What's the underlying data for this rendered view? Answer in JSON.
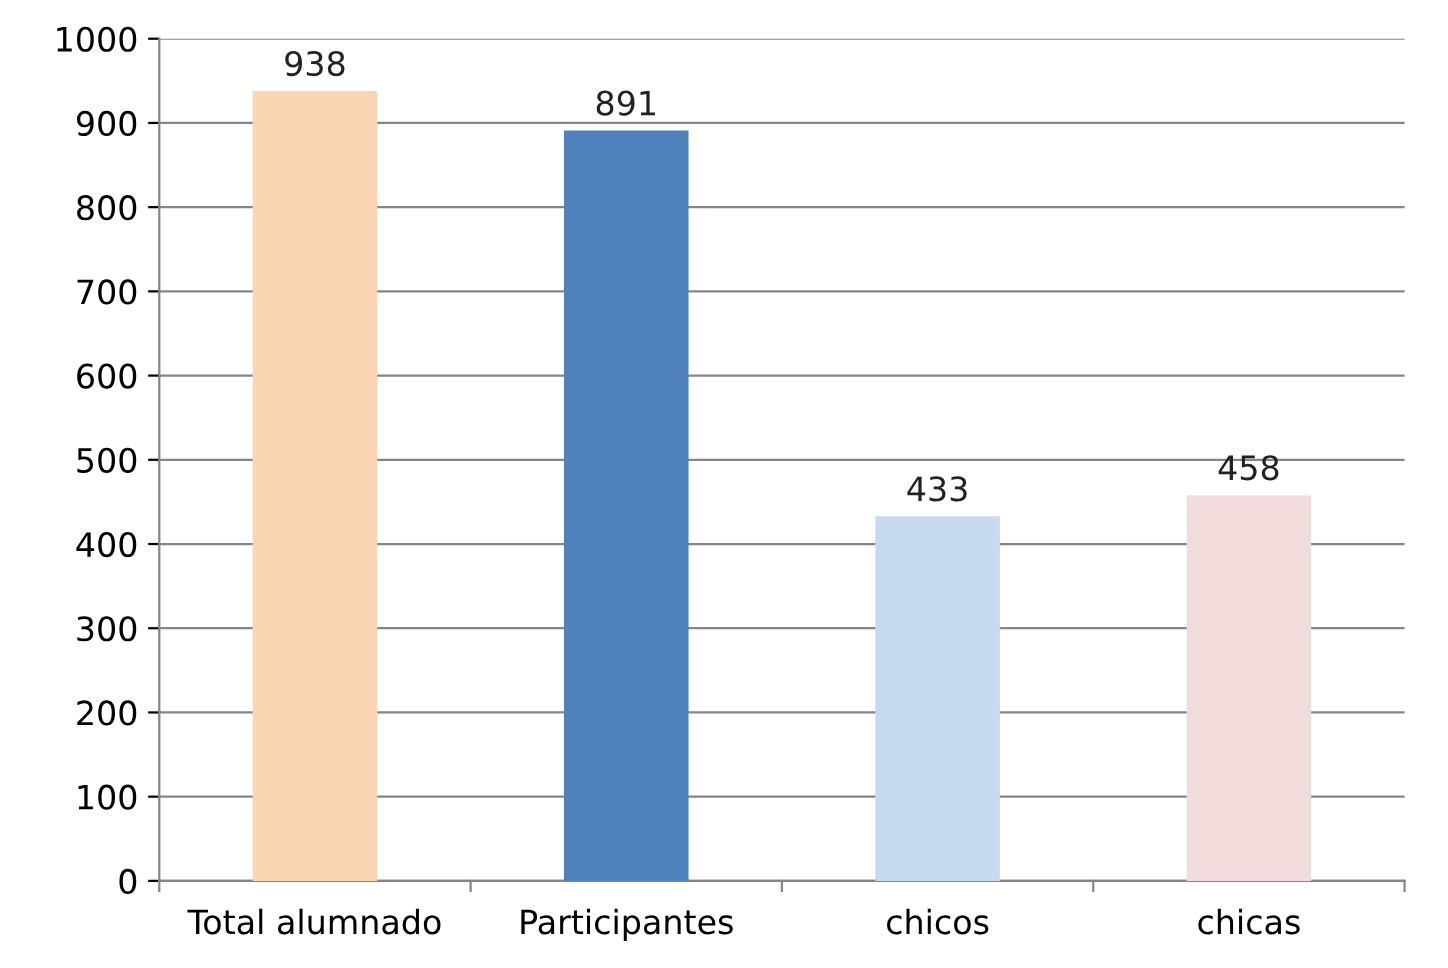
{
  "chart_data": {
    "type": "bar",
    "categories": [
      "Total alumnado",
      "Participantes",
      "chicos",
      "chicas"
    ],
    "values": [
      938,
      891,
      433,
      458
    ],
    "colors": [
      "#fcd5b5",
      "#4f81bd",
      "#c6d9f1",
      "#f2dcdb"
    ],
    "ylim": [
      0,
      1000
    ],
    "yticks": [
      0,
      100,
      200,
      300,
      400,
      500,
      600,
      700,
      800,
      900,
      1000
    ],
    "grid": "y",
    "data_labels": true
  }
}
